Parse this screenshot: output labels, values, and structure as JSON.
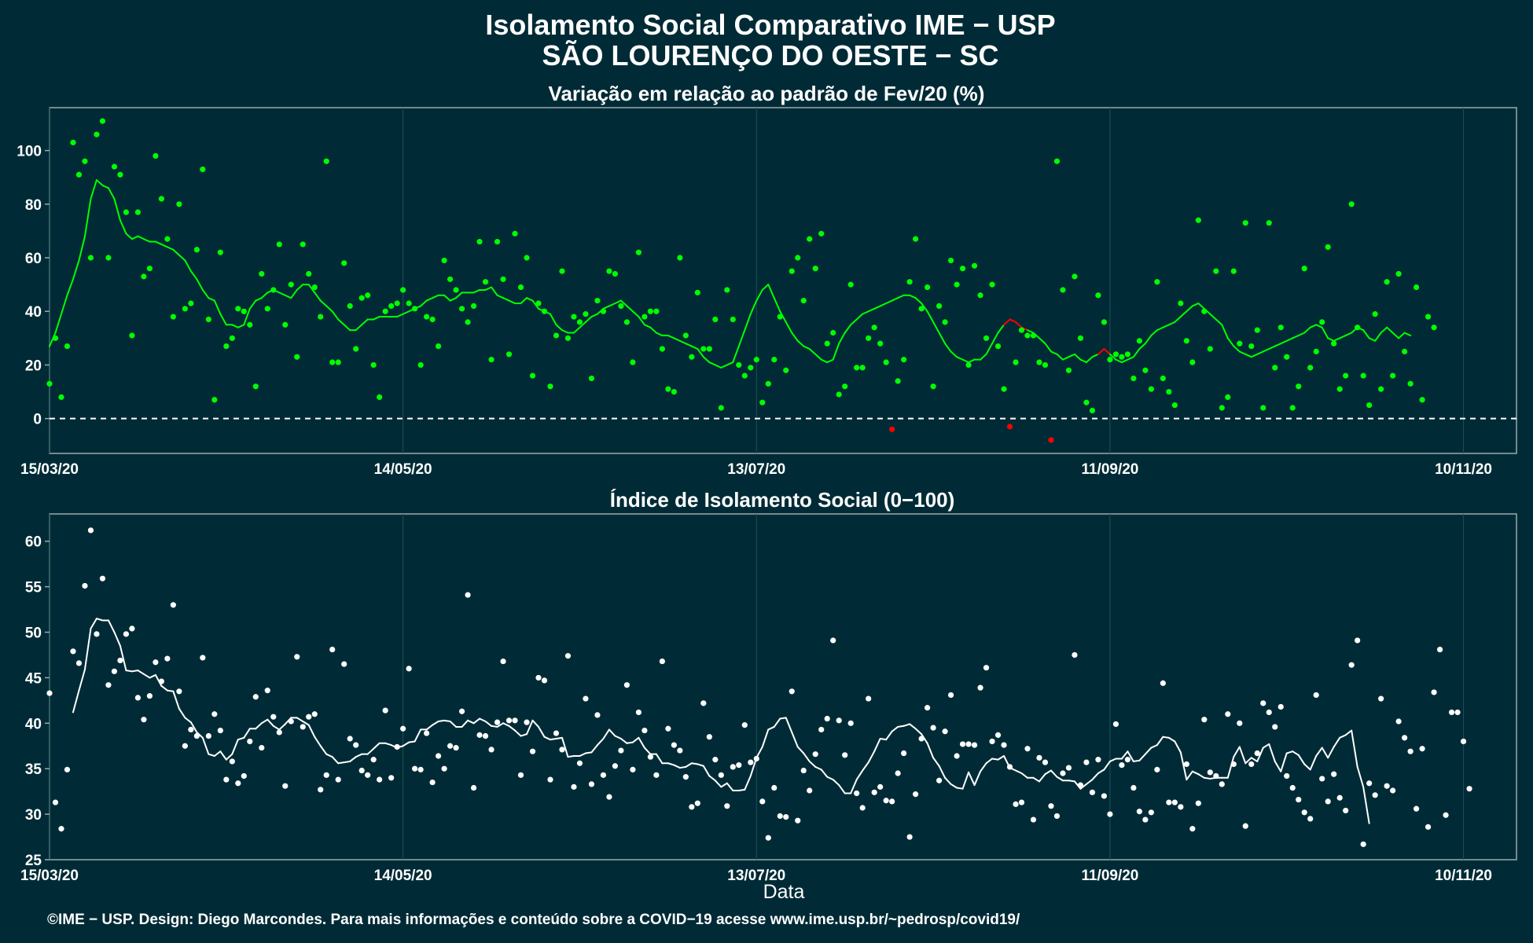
{
  "header": {
    "title": "Isolamento Social Comparativo IME − USP",
    "subtitle": "SÃO LOURENÇO DO OESTE − SC"
  },
  "footer": {
    "credit": "©IME − USP. Design: Diego Marcondes. Para mais informações e conteúdo sobre a COVID−19 acesse www.ime.usp.br/~pedrosp/covid19/"
  },
  "colors": {
    "background": "#002b36",
    "panel_border": "#9aa9ad",
    "grid": "#1f4f56",
    "positive": "#00ff00",
    "negative": "#ff0000",
    "index": "#ffffff"
  },
  "chart_data": [
    {
      "type": "scatter",
      "title": "Variação em relação ao padrão de Fev/20 (%)",
      "xlabel": "",
      "ylabel": "",
      "x_start": "15/03/20",
      "x_end": "19/11/20",
      "x_ticks": [
        "15/03/20",
        "14/05/20",
        "13/07/20",
        "11/09/20",
        "10/11/20"
      ],
      "y_ticks": [
        0,
        20,
        40,
        60,
        80,
        100
      ],
      "ylim": [
        -13,
        116
      ],
      "reference_line": 0,
      "grid": true,
      "series": [
        {
          "kind": "daily points",
          "values": [
            13,
            30,
            8,
            27,
            103,
            91,
            96,
            60,
            106,
            111,
            60,
            94,
            91,
            77,
            31,
            77,
            53,
            56,
            98,
            82,
            67,
            38,
            80,
            41,
            43,
            63,
            93,
            37,
            7,
            62,
            27,
            30,
            41,
            40,
            35,
            12,
            54,
            41,
            48,
            65,
            35,
            50,
            23,
            65,
            54,
            49,
            38,
            96,
            21,
            21,
            58,
            42,
            26,
            45,
            46,
            20,
            8,
            40,
            42,
            43,
            48,
            43,
            41,
            20,
            38,
            37,
            27,
            59,
            52,
            48,
            41,
            36,
            42,
            66,
            51,
            22,
            66,
            52,
            24,
            69,
            49,
            60,
            16,
            43,
            40,
            12,
            31,
            55,
            30,
            38,
            36,
            39,
            15,
            44,
            40,
            55,
            54,
            42,
            36,
            21,
            62,
            38,
            40,
            40,
            26,
            11,
            10,
            60,
            31,
            23,
            47,
            26,
            26,
            37,
            4,
            48,
            37,
            20,
            16,
            19,
            22,
            6,
            13,
            22,
            38,
            18,
            55,
            60,
            44,
            67,
            56,
            69,
            28,
            32,
            9,
            12,
            50,
            19,
            19,
            30,
            34,
            28,
            21,
            -4,
            14,
            22,
            51,
            67,
            41,
            49,
            12,
            42,
            36,
            59,
            50,
            56,
            20,
            57,
            46,
            30,
            50,
            27,
            11,
            -3,
            21,
            33,
            31,
            31,
            21,
            20,
            -8,
            96,
            48,
            18,
            53,
            30,
            6,
            3,
            46,
            36,
            22,
            24,
            23,
            24,
            15,
            29,
            18,
            11,
            51,
            15,
            10,
            5,
            43,
            29,
            21,
            74,
            40,
            26,
            55,
            4,
            8,
            55,
            28,
            73,
            27,
            33,
            4,
            73,
            19,
            34,
            23,
            4,
            12,
            56,
            19,
            25,
            36,
            64,
            28,
            11,
            16,
            80,
            34,
            16,
            5,
            39,
            11,
            51,
            16,
            54,
            25,
            13,
            49,
            7,
            38,
            34
          ],
          "negative_color_days": [
            143,
            163,
            170
          ]
        },
        {
          "kind": "moving average",
          "values": [
            27,
            32,
            39,
            46,
            52,
            59,
            68,
            82,
            89,
            87,
            86,
            82,
            74,
            69,
            67,
            68,
            67,
            66,
            66,
            65,
            64,
            63,
            61,
            59,
            55,
            52,
            48,
            45,
            44,
            39,
            35,
            35,
            34,
            35,
            41,
            44,
            45,
            47,
            48,
            47,
            46,
            45,
            48,
            50,
            50,
            47,
            44,
            42,
            40,
            37,
            35,
            33,
            33,
            35,
            37,
            37,
            38,
            38,
            38,
            38,
            39,
            40,
            41,
            42,
            44,
            45,
            46,
            46,
            44,
            45,
            47,
            47,
            47,
            48,
            48,
            49,
            46,
            45,
            44,
            43,
            43,
            45,
            44,
            41,
            40,
            39,
            35,
            33,
            32,
            32,
            34,
            36,
            38,
            39,
            41,
            42,
            43,
            44,
            42,
            40,
            38,
            35,
            34,
            32,
            31,
            31,
            30,
            29,
            28,
            27,
            26,
            23,
            21,
            20,
            19,
            20,
            21,
            27,
            33,
            39,
            44,
            48,
            50,
            45,
            40,
            36,
            32,
            29,
            27,
            26,
            24,
            22,
            21,
            22,
            28,
            32,
            35,
            37,
            39,
            40,
            41,
            42,
            43,
            44,
            45,
            46,
            46,
            45,
            43,
            40,
            36,
            32,
            28,
            25,
            23,
            22,
            21,
            22,
            22,
            24,
            28,
            32,
            35,
            37,
            36,
            34,
            33,
            32,
            30,
            28,
            25,
            24,
            22,
            23,
            24,
            22,
            21,
            23,
            24,
            26,
            24,
            22,
            21,
            22,
            23,
            26,
            28,
            31,
            33,
            34,
            35,
            36,
            38,
            40,
            42,
            43,
            41,
            39,
            37,
            35,
            30,
            27,
            25,
            24,
            23,
            24,
            25,
            26,
            27,
            28,
            29,
            30,
            31,
            32,
            34,
            35,
            34,
            30,
            29,
            30,
            31,
            32,
            34,
            33,
            30,
            29,
            32,
            34,
            32,
            30,
            32,
            31
          ],
          "negative_color_days": [
            163,
            164,
            165,
            179
          ]
        }
      ]
    },
    {
      "type": "scatter",
      "title": "Índice de Isolamento Social (0−100)",
      "xlabel": "Data",
      "ylabel": "",
      "x_start": "15/03/20",
      "x_end": "19/11/20",
      "x_ticks": [
        "15/03/20",
        "14/05/20",
        "13/07/20",
        "11/09/20",
        "10/11/20"
      ],
      "y_ticks": [
        25,
        30,
        35,
        40,
        45,
        50,
        55,
        60
      ],
      "ylim": [
        25,
        63
      ],
      "grid": true,
      "series": [
        {
          "kind": "daily points",
          "values": [
            43.3,
            31.3,
            28.4,
            34.9,
            47.9,
            46.6,
            55.1,
            61.2,
            49.8,
            55.9,
            44.2,
            45.7,
            46.9,
            49.8,
            50.4,
            42.8,
            40.4,
            43.0,
            46.7,
            44.6,
            47.1,
            53.0,
            43.5,
            37.5,
            39.3,
            38.6,
            47.2,
            38.6,
            41.0,
            39.2,
            33.8,
            35.8,
            33.4,
            34.2,
            38.0,
            42.9,
            37.3,
            43.6,
            40.7,
            39.0,
            33.1,
            40.2,
            47.3,
            39.6,
            40.7,
            41.0,
            32.7,
            34.3,
            48.1,
            33.8,
            46.5,
            38.3,
            37.6,
            34.8,
            34.3,
            36.0,
            33.8,
            41.4,
            34.0,
            37.4,
            39.4,
            46.0,
            35.0,
            34.9,
            38.9,
            33.5,
            36.4,
            35.0,
            37.5,
            37.3,
            41.3,
            54.1,
            32.9,
            38.7,
            38.6,
            37.1,
            40.1,
            46.8,
            40.3,
            40.3,
            34.3,
            40.1,
            36.9,
            45.0,
            44.7,
            33.8,
            38.9,
            37.1,
            47.4,
            33.0,
            35.6,
            42.7,
            33.3,
            40.9,
            34.3,
            31.9,
            35.3,
            37.0,
            44.2,
            34.9,
            41.2,
            39.2,
            36.3,
            34.3,
            46.8,
            39.4,
            37.6,
            37.0,
            34.1,
            30.8,
            31.2,
            42.2,
            38.5,
            36.0,
            34.3,
            30.9,
            35.2,
            35.4,
            39.8,
            35.7,
            36.1,
            31.4,
            27.4,
            32.9,
            29.8,
            29.7,
            43.5,
            29.3,
            34.8,
            32.6,
            36.6,
            39.3,
            40.5,
            49.1,
            40.3,
            36.5,
            40.0,
            32.3,
            30.7,
            42.7,
            32.4,
            33.0,
            31.5,
            31.4,
            34.5,
            36.7,
            27.5,
            32.2,
            38.3,
            41.7,
            39.5,
            33.7,
            39.1,
            43.1,
            36.4,
            37.7,
            37.7,
            37.6,
            43.9,
            46.1,
            38.0,
            38.7,
            37.6,
            35.2,
            31.1,
            31.3,
            37.2,
            29.4,
            36.2,
            35.7,
            30.9,
            29.8,
            34.5,
            35.1,
            47.5,
            33.2,
            35.7,
            32.4,
            36.0,
            32.0,
            30.0,
            39.9,
            35.4,
            36.0,
            32.9,
            30.3,
            29.4,
            30.2,
            34.9,
            44.4,
            31.3,
            31.3,
            30.8,
            35.5,
            28.4,
            31.2,
            40.4,
            34.6,
            34.2,
            33.3,
            41.0,
            35.5,
            40.0,
            28.7,
            35.5,
            36.7,
            42.2,
            41.2,
            39.6,
            41.8,
            34.2,
            32.9,
            31.6,
            30.2,
            29.5,
            43.1,
            33.9,
            31.4,
            34.4,
            31.8,
            30.4,
            46.4,
            49.1,
            26.7,
            33.4,
            32.1,
            42.7,
            33.1,
            32.6,
            40.2,
            38.4,
            36.9,
            30.6,
            37.2,
            28.6,
            43.4,
            48.1,
            29.9,
            41.2,
            41.2,
            38.0,
            32.8
          ],
          "start_day": 0
        },
        {
          "kind": "moving average",
          "values": [
            41.2,
            43.6,
            45.9,
            50.4,
            51.5,
            51.3,
            51.3,
            50.0,
            48.5,
            45.8,
            45.7,
            45.8,
            45.4,
            45.0,
            45.3,
            44.1,
            43.6,
            43.5,
            41.6,
            40.6,
            40.1,
            39.0,
            38.4,
            36.6,
            36.4,
            36.9,
            36.0,
            36.6,
            38.2,
            38.4,
            39.4,
            39.4,
            40.0,
            40.4,
            39.7,
            39.3,
            39.9,
            40.6,
            40.6,
            40.2,
            39.8,
            38.5,
            37.5,
            36.6,
            36.3,
            35.6,
            35.7,
            35.8,
            36.3,
            36.6,
            36.6,
            37.2,
            37.8,
            37.8,
            37.6,
            37.3,
            37.5,
            37.9,
            38.0,
            39.3,
            39.3,
            39.8,
            40.2,
            40.3,
            40.2,
            39.6,
            39.6,
            40.3,
            40.0,
            40.5,
            40.2,
            39.7,
            39.6,
            40.0,
            39.7,
            39.2,
            38.6,
            38.8,
            40.3,
            39.6,
            38.5,
            38.2,
            38.3,
            38.4,
            36.3,
            36.4,
            36.4,
            36.7,
            36.8,
            37.6,
            38.3,
            39.3,
            38.6,
            38.3,
            37.8,
            37.9,
            38.4,
            37.3,
            36.6,
            36.6,
            35.6,
            35.6,
            35.4,
            35.1,
            35.2,
            35.6,
            35.5,
            35.3,
            34.2,
            33.7,
            33.0,
            33.4,
            32.6,
            32.6,
            32.7,
            34.2,
            36.2,
            37.4,
            39.3,
            39.6,
            40.5,
            40.6,
            39.0,
            37.4,
            36.7,
            35.8,
            35.2,
            34.9,
            34.1,
            33.8,
            33.2,
            32.3,
            32.3,
            33.8,
            34.8,
            35.7,
            36.9,
            38.3,
            38.2,
            39.1,
            39.6,
            39.7,
            39.9,
            39.4,
            38.8,
            37.8,
            36.2,
            35.3,
            34.0,
            33.3,
            32.9,
            32.8,
            34.6,
            33.2,
            34.7,
            35.6,
            36.1,
            36.0,
            36.4,
            35.1,
            34.8,
            34.5,
            34.0,
            34.0,
            33.6,
            34.4,
            34.8,
            34.1,
            33.7,
            33.7,
            33.6,
            32.8,
            33.3,
            33.8,
            34.5,
            34.9,
            35.8,
            36.1,
            36.1,
            36.9,
            35.8,
            35.9,
            36.6,
            37.3,
            37.6,
            38.5,
            38.4,
            38.0,
            36.8,
            33.8,
            34.7,
            34.4,
            34.0,
            33.9,
            34.0,
            34.0,
            34.0,
            36.3,
            37.4,
            35.6,
            36.2,
            35.8,
            37.3,
            37.7,
            35.8,
            34.7,
            36.7,
            36.9,
            36.5,
            35.5,
            34.9,
            36.4,
            37.3,
            36.2,
            37.4,
            38.4,
            38.7,
            39.2,
            35.2,
            33.0,
            29.0
          ],
          "start_day": 4
        }
      ]
    }
  ]
}
